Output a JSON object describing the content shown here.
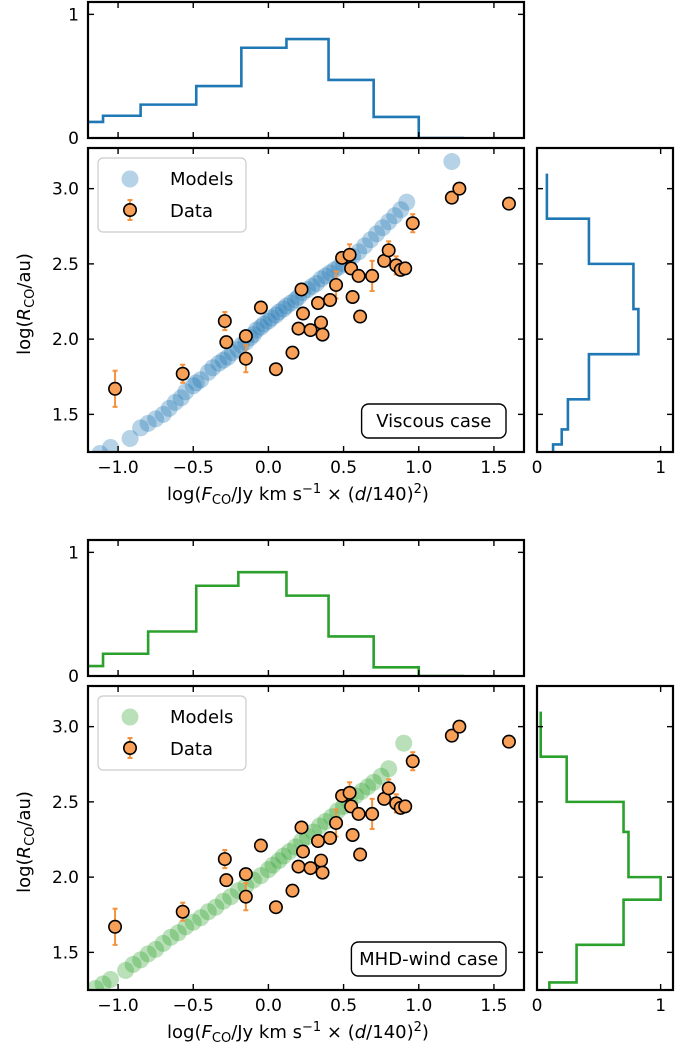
{
  "chart_data": [
    {
      "type": "scatter",
      "panel": "viscous",
      "case_label": "Viscous case",
      "xlabel": "log(F_CO/Jy km s^-1 × (d/140)^2)",
      "ylabel": "log(R_CO/au)",
      "xlim": [
        -1.2,
        1.7
      ],
      "ylim": [
        1.25,
        3.27
      ],
      "xticks": [
        -1.0,
        -0.5,
        0.0,
        0.5,
        1.0,
        1.5
      ],
      "xtick_labels": [
        "−1.0",
        "−0.5",
        "0.0",
        "0.5",
        "1.0",
        "1.5"
      ],
      "yticks": [
        1.5,
        2.0,
        2.5,
        3.0
      ],
      "ytick_labels": [
        "1.5",
        "2.0",
        "2.5",
        "3.0"
      ],
      "legend": {
        "placement": "top-left",
        "entries": [
          "Models",
          "Data"
        ]
      },
      "colors": {
        "models": "#1f77b4",
        "data_face": "#f8a058",
        "data_err": "#f5923e"
      },
      "models": {
        "x": [
          -1.12,
          -1.05,
          -0.92,
          -0.85,
          -0.8,
          -0.75,
          -0.7,
          -0.66,
          -0.62,
          -0.58,
          -0.55,
          -0.5,
          -0.48,
          -0.45,
          -0.4,
          -0.37,
          -0.33,
          -0.3,
          -0.27,
          -0.24,
          -0.2,
          -0.18,
          -0.15,
          -0.12,
          -0.1,
          -0.08,
          -0.05,
          -0.03,
          0.0,
          0.02,
          0.05,
          0.07,
          0.1,
          0.12,
          0.15,
          0.18,
          0.2,
          0.23,
          0.26,
          0.29,
          0.32,
          0.35,
          0.38,
          0.41,
          0.44,
          0.47,
          0.5,
          0.53,
          0.56,
          0.6,
          0.64,
          0.68,
          0.72,
          0.76,
          0.8,
          0.84,
          0.88,
          0.92,
          1.22
        ],
        "y": [
          1.24,
          1.28,
          1.34,
          1.41,
          1.44,
          1.47,
          1.5,
          1.54,
          1.58,
          1.61,
          1.65,
          1.69,
          1.71,
          1.73,
          1.78,
          1.81,
          1.84,
          1.86,
          1.88,
          1.91,
          1.93,
          1.96,
          1.98,
          2.01,
          2.03,
          2.06,
          2.08,
          2.1,
          2.12,
          2.14,
          2.16,
          2.18,
          2.2,
          2.22,
          2.24,
          2.26,
          2.28,
          2.31,
          2.33,
          2.35,
          2.37,
          2.4,
          2.42,
          2.44,
          2.46,
          2.48,
          2.5,
          2.53,
          2.55,
          2.58,
          2.62,
          2.66,
          2.7,
          2.74,
          2.78,
          2.82,
          2.86,
          2.91,
          3.18
        ]
      },
      "data": {
        "x": [
          -1.02,
          -0.57,
          -0.29,
          -0.28,
          -0.15,
          -0.15,
          -0.05,
          0.05,
          0.16,
          0.2,
          0.22,
          0.23,
          0.28,
          0.33,
          0.35,
          0.36,
          0.41,
          0.45,
          0.49,
          0.54,
          0.55,
          0.56,
          0.6,
          0.61,
          0.69,
          0.77,
          0.8,
          0.85,
          0.88,
          0.91,
          0.96,
          1.22,
          1.27,
          1.6
        ],
        "y": [
          1.67,
          1.77,
          2.12,
          1.98,
          2.02,
          1.87,
          2.21,
          1.8,
          1.91,
          2.07,
          2.33,
          2.17,
          2.06,
          2.24,
          2.11,
          2.03,
          2.26,
          2.36,
          2.54,
          2.56,
          2.47,
          2.28,
          2.42,
          2.15,
          2.42,
          2.52,
          2.59,
          2.49,
          2.46,
          2.47,
          2.77,
          2.94,
          3.0,
          2.9
        ],
        "err": [
          0.12,
          0.06,
          0.06,
          0.0,
          0.0,
          0.09,
          0.0,
          0.0,
          0.0,
          0.0,
          0.0,
          0.0,
          0.0,
          0.0,
          0.0,
          0.0,
          0.0,
          0.09,
          0.0,
          0.07,
          0.0,
          0.0,
          0.0,
          0.0,
          0.1,
          0.0,
          0.06,
          0.06,
          0.0,
          0.0,
          0.06,
          0.0,
          0.0,
          0.0
        ]
      },
      "hist_x": {
        "edges": [
          -1.2,
          -1.1,
          -0.85,
          -0.48,
          -0.18,
          0.12,
          0.4,
          0.7,
          1.0,
          1.3
        ],
        "values": [
          0.13,
          0.18,
          0.27,
          0.42,
          0.73,
          0.8,
          0.47,
          0.17,
          0.0
        ],
        "ylim": [
          0,
          1.1
        ],
        "yticks": [
          0,
          1
        ],
        "ytick_labels": [
          "0",
          "1"
        ]
      },
      "hist_y": {
        "edges": [
          1.25,
          1.3,
          1.4,
          1.6,
          1.9,
          2.2,
          2.5,
          2.8,
          3.1
        ],
        "values": [
          0.13,
          0.2,
          0.25,
          0.42,
          0.82,
          0.78,
          0.42,
          0.08
        ],
        "xlim": [
          0,
          1.1
        ],
        "xticks": [
          0,
          1
        ],
        "xtick_labels": [
          "0",
          "1"
        ]
      }
    },
    {
      "type": "scatter",
      "panel": "mhd",
      "case_label": "MHD-wind case",
      "xlabel": "log(F_CO/Jy km s^-1 × (d/140)^2)",
      "ylabel": "log(R_CO/au)",
      "xlim": [
        -1.2,
        1.7
      ],
      "ylim": [
        1.25,
        3.27
      ],
      "xticks": [
        -1.0,
        -0.5,
        0.0,
        0.5,
        1.0,
        1.5
      ],
      "xtick_labels": [
        "−1.0",
        "−0.5",
        "0.0",
        "0.5",
        "1.0",
        "1.5"
      ],
      "yticks": [
        1.5,
        2.0,
        2.5,
        3.0
      ],
      "ytick_labels": [
        "1.5",
        "2.0",
        "2.5",
        "3.0"
      ],
      "legend": {
        "placement": "top-left",
        "entries": [
          "Models",
          "Data"
        ]
      },
      "colors": {
        "models": "#2ca02c",
        "data_face": "#f8a058",
        "data_err": "#f5923e"
      },
      "models": {
        "x": [
          -1.15,
          -1.1,
          -1.05,
          -0.95,
          -0.9,
          -0.85,
          -0.8,
          -0.75,
          -0.7,
          -0.65,
          -0.6,
          -0.55,
          -0.5,
          -0.45,
          -0.4,
          -0.35,
          -0.3,
          -0.25,
          -0.2,
          -0.15,
          -0.1,
          -0.05,
          0.0,
          0.03,
          0.07,
          0.1,
          0.14,
          0.18,
          0.22,
          0.26,
          0.3,
          0.34,
          0.38,
          0.42,
          0.46,
          0.5,
          0.54,
          0.58,
          0.62,
          0.66,
          0.7,
          0.75,
          0.8,
          0.9
        ],
        "y": [
          1.26,
          1.29,
          1.32,
          1.38,
          1.42,
          1.45,
          1.49,
          1.52,
          1.56,
          1.6,
          1.63,
          1.67,
          1.7,
          1.73,
          1.77,
          1.8,
          1.84,
          1.87,
          1.91,
          1.94,
          1.98,
          2.01,
          2.05,
          2.08,
          2.11,
          2.14,
          2.17,
          2.2,
          2.24,
          2.27,
          2.3,
          2.34,
          2.37,
          2.4,
          2.44,
          2.47,
          2.5,
          2.54,
          2.57,
          2.6,
          2.63,
          2.67,
          2.72,
          2.89
        ]
      },
      "data": {
        "x": [
          -1.02,
          -0.57,
          -0.29,
          -0.28,
          -0.15,
          -0.15,
          -0.05,
          0.05,
          0.16,
          0.2,
          0.22,
          0.23,
          0.28,
          0.33,
          0.35,
          0.36,
          0.41,
          0.45,
          0.49,
          0.54,
          0.55,
          0.56,
          0.6,
          0.61,
          0.69,
          0.77,
          0.8,
          0.85,
          0.88,
          0.91,
          0.96,
          1.22,
          1.27,
          1.6
        ],
        "y": [
          1.67,
          1.77,
          2.12,
          1.98,
          2.02,
          1.87,
          2.21,
          1.8,
          1.91,
          2.07,
          2.33,
          2.17,
          2.06,
          2.24,
          2.11,
          2.03,
          2.26,
          2.36,
          2.54,
          2.56,
          2.47,
          2.28,
          2.42,
          2.15,
          2.42,
          2.52,
          2.59,
          2.49,
          2.46,
          2.47,
          2.77,
          2.94,
          3.0,
          2.9
        ],
        "err": [
          0.12,
          0.06,
          0.06,
          0.0,
          0.0,
          0.09,
          0.0,
          0.0,
          0.0,
          0.0,
          0.0,
          0.0,
          0.0,
          0.0,
          0.0,
          0.0,
          0.0,
          0.09,
          0.0,
          0.07,
          0.0,
          0.0,
          0.0,
          0.0,
          0.1,
          0.0,
          0.06,
          0.06,
          0.0,
          0.0,
          0.06,
          0.0,
          0.0,
          0.0
        ]
      },
      "hist_x": {
        "edges": [
          -1.2,
          -1.1,
          -0.8,
          -0.48,
          -0.2,
          0.12,
          0.4,
          0.7,
          1.0,
          1.3
        ],
        "values": [
          0.08,
          0.18,
          0.36,
          0.73,
          0.84,
          0.65,
          0.32,
          0.07,
          0.0
        ],
        "ylim": [
          0,
          1.1
        ],
        "yticks": [
          0,
          1
        ],
        "ytick_labels": [
          "0",
          "1"
        ]
      },
      "hist_y": {
        "edges": [
          1.25,
          1.3,
          1.55,
          1.85,
          2.0,
          2.3,
          2.5,
          2.8,
          3.1
        ],
        "values": [
          0.1,
          0.32,
          0.7,
          1.0,
          0.74,
          0.7,
          0.24,
          0.03
        ],
        "xlim": [
          0,
          1.1
        ],
        "xticks": [
          0,
          1
        ],
        "xtick_labels": [
          "0",
          "1"
        ]
      }
    }
  ]
}
